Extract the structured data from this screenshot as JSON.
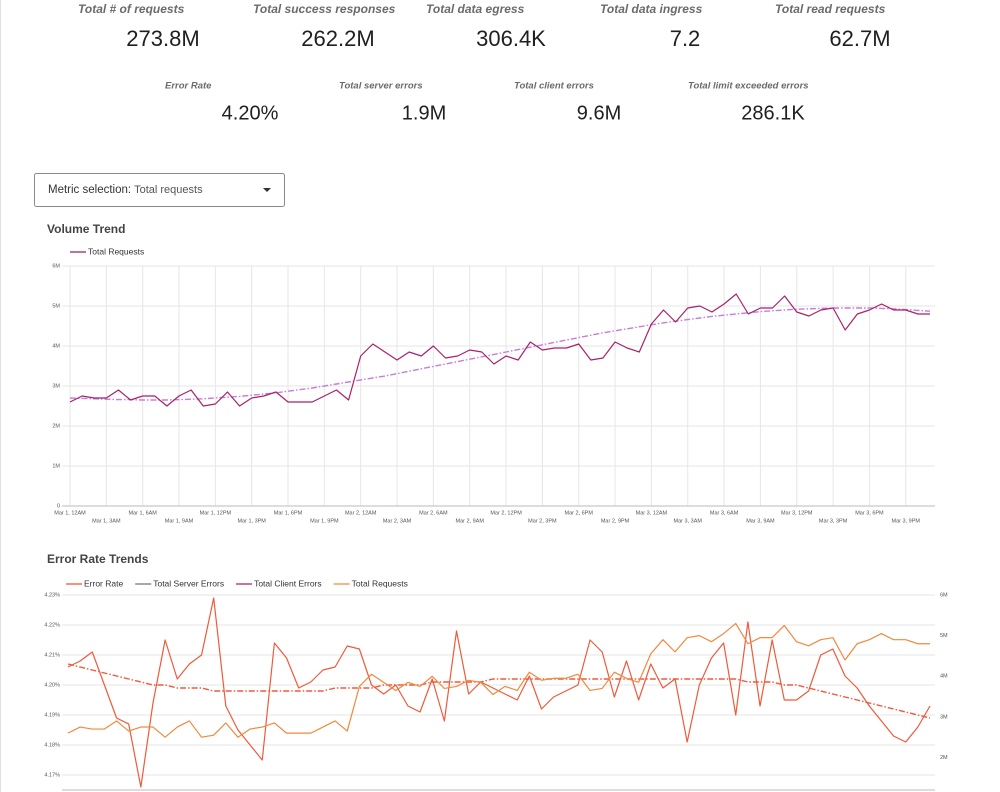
{
  "scorecards": [
    {
      "label": "Total # of requests",
      "value": "273.8M"
    },
    {
      "label": "Total success responses",
      "value": "262.2M"
    },
    {
      "label": "Total data egress",
      "value": "306.4K"
    },
    {
      "label": "Total data ingress",
      "value": "7.2"
    },
    {
      "label": "Total read requests",
      "value": "62.7M"
    },
    {
      "label": "Error Rate",
      "value": "4.20%"
    },
    {
      "label": "Total server errors",
      "value": "1.9M"
    },
    {
      "label": "Total client errors",
      "value": "9.6M"
    },
    {
      "label": "Total limit exceeded errors",
      "value": "286.1K"
    }
  ],
  "metric_selection": {
    "label": "Metric selection:",
    "value": "Total requests"
  },
  "chart_data": [
    {
      "type": "line",
      "title": "Volume Trend",
      "categories": [
        "Mar 1, 12AM",
        null,
        null,
        "Mar 1, 3AM",
        null,
        null,
        "Mar 1, 6AM",
        null,
        null,
        "Mar 1, 9AM",
        null,
        null,
        "Mar 1, 12PM",
        null,
        null,
        "Mar 1, 3PM",
        null,
        null,
        "Mar 1, 6PM",
        null,
        null,
        "Mar 1, 9PM",
        null,
        null,
        "Mar 2, 12AM",
        null,
        null,
        "Mar 2, 3AM",
        null,
        null,
        "Mar 2, 6AM",
        null,
        null,
        "Mar 2, 9AM",
        null,
        null,
        "Mar 2, 12PM",
        null,
        null,
        "Mar 2, 3PM",
        null,
        null,
        "Mar 2, 6PM",
        null,
        null,
        "Mar 2, 9PM",
        null,
        null,
        "Mar 3, 12AM",
        null,
        null,
        "Mar 3, 3AM",
        null,
        null,
        "Mar 3, 6AM",
        null,
        null,
        "Mar 3, 9AM",
        null,
        null,
        "Mar 3, 12PM",
        null,
        null,
        "Mar 3, 3PM",
        null,
        null,
        "Mar 3, 6PM",
        null,
        null,
        "Mar 3, 9PM",
        null,
        null
      ],
      "series": [
        {
          "name": "Total Requests",
          "color": "#a8226a",
          "values": [
            2600000,
            2750000,
            2700000,
            2700000,
            2900000,
            2650000,
            2750000,
            2750000,
            2500000,
            2750000,
            2900000,
            2500000,
            2550000,
            2850000,
            2500000,
            2700000,
            2750000,
            2850000,
            2600000,
            2600000,
            2600000,
            2750000,
            2900000,
            2650000,
            3750000,
            4050000,
            3850000,
            3650000,
            3850000,
            3750000,
            4000000,
            3700000,
            3750000,
            3900000,
            3850000,
            3550000,
            3750000,
            3650000,
            4100000,
            3900000,
            3950000,
            3950000,
            4050000,
            3650000,
            3700000,
            4100000,
            3950000,
            3850000,
            4550000,
            4900000,
            4600000,
            4950000,
            5000000,
            4850000,
            5050000,
            5300000,
            4800000,
            4950000,
            4950000,
            5250000,
            4850000,
            4750000,
            4900000,
            4950000,
            4400000,
            4800000,
            4900000,
            5050000,
            4900000,
            4900000,
            4800000,
            4800000
          ],
          "trend_color": "#c77ddb",
          "trend": [
            2700000,
            2690000,
            2680000,
            2670000,
            2660000,
            2660000,
            2650000,
            2650000,
            2650000,
            2660000,
            2670000,
            2680000,
            2700000,
            2720000,
            2740000,
            2770000,
            2800000,
            2830000,
            2870000,
            2910000,
            2950000,
            3000000,
            3050000,
            3100000,
            3150000,
            3200000,
            3250000,
            3310000,
            3370000,
            3430000,
            3490000,
            3550000,
            3610000,
            3670000,
            3730000,
            3790000,
            3850000,
            3910000,
            3970000,
            4030000,
            4090000,
            4150000,
            4210000,
            4270000,
            4330000,
            4380000,
            4430000,
            4480000,
            4530000,
            4580000,
            4620000,
            4660000,
            4700000,
            4740000,
            4770000,
            4800000,
            4830000,
            4860000,
            4880000,
            4900000,
            4920000,
            4930000,
            4940000,
            4950000,
            4950000,
            4950000,
            4950000,
            4940000,
            4930000,
            4910000,
            4890000,
            4870000
          ]
        }
      ],
      "ylim": [
        0,
        6000000
      ],
      "yticks": [
        0,
        {
          "value": 1000000,
          "label": "1M"
        },
        {
          "value": 2000000,
          "label": "2M"
        },
        {
          "value": 3000000,
          "label": "3M"
        },
        {
          "value": 4000000,
          "label": "4M"
        },
        {
          "value": 5000000,
          "label": "5M"
        },
        {
          "value": 6000000,
          "label": "6M"
        }
      ],
      "grid": true
    },
    {
      "type": "line",
      "title": "Error Rate Trends",
      "series": [
        {
          "name": "Error Rate",
          "color": "#ee5a3b",
          "values": [
            4.206,
            4.208,
            4.211,
            4.2,
            4.189,
            4.187,
            4.166,
            4.194,
            4.215,
            4.202,
            4.207,
            4.21,
            4.229,
            4.193,
            4.185,
            4.18,
            4.175,
            4.214,
            4.209,
            4.199,
            4.201,
            4.205,
            4.206,
            4.213,
            4.212,
            4.2,
            4.197,
            4.2,
            4.193,
            4.191,
            4.202,
            4.188,
            4.218,
            4.197,
            4.201,
            4.199,
            4.197,
            4.195,
            4.203,
            4.192,
            4.196,
            4.198,
            4.2,
            4.215,
            4.211,
            4.196,
            4.208,
            4.195,
            4.207,
            4.199,
            4.202,
            4.181,
            4.2,
            4.209,
            4.214,
            4.19,
            4.221,
            4.193,
            4.215,
            4.195,
            4.195,
            4.198,
            4.21,
            4.212,
            4.203,
            4.199,
            4.193,
            4.188,
            4.183,
            4.181,
            4.186,
            4.193
          ],
          "trend_color": "#ee5a3b",
          "trend": [
            4.207,
            4.206,
            4.205,
            4.204,
            4.203,
            4.202,
            4.201,
            4.2,
            4.2,
            4.199,
            4.199,
            4.199,
            4.198,
            4.198,
            4.198,
            4.198,
            4.198,
            4.198,
            4.198,
            4.198,
            4.198,
            4.198,
            4.199,
            4.199,
            4.199,
            4.199,
            4.2,
            4.2,
            4.2,
            4.2,
            4.201,
            4.201,
            4.201,
            4.201,
            4.201,
            4.202,
            4.202,
            4.202,
            4.202,
            4.202,
            4.202,
            4.202,
            4.202,
            4.202,
            4.202,
            4.202,
            4.202,
            4.202,
            4.202,
            4.202,
            4.202,
            4.202,
            4.202,
            4.202,
            4.202,
            4.202,
            4.201,
            4.201,
            4.201,
            4.2,
            4.2,
            4.199,
            4.198,
            4.197,
            4.196,
            4.195,
            4.194,
            4.193,
            4.192,
            4.191,
            4.19,
            4.189
          ]
        },
        {
          "name": "Total Server Errors",
          "color": "#757575"
        },
        {
          "name": "Total Client Errors",
          "color": "#a8226a"
        },
        {
          "name": "Total Requests",
          "color": "#f08a3e",
          "axis": "y2",
          "values": [
            2600000,
            2750000,
            2700000,
            2700000,
            2900000,
            2650000,
            2750000,
            2750000,
            2500000,
            2750000,
            2900000,
            2500000,
            2550000,
            2850000,
            2500000,
            2700000,
            2750000,
            2850000,
            2600000,
            2600000,
            2600000,
            2750000,
            2900000,
            2650000,
            3750000,
            4050000,
            3850000,
            3650000,
            3850000,
            3750000,
            4000000,
            3700000,
            3750000,
            3900000,
            3850000,
            3550000,
            3750000,
            3650000,
            4100000,
            3900000,
            3950000,
            3950000,
            4050000,
            3650000,
            3700000,
            4100000,
            3950000,
            3850000,
            4550000,
            4900000,
            4600000,
            4950000,
            5000000,
            4850000,
            5050000,
            5300000,
            4800000,
            4950000,
            4950000,
            5250000,
            4850000,
            4750000,
            4900000,
            4950000,
            4400000,
            4800000,
            4900000,
            5050000,
            4900000,
            4900000,
            4800000,
            4800000
          ]
        }
      ],
      "ylim": [
        4.165,
        4.23
      ],
      "yticks": [
        {
          "value": 4.17,
          "label": "4.17%"
        },
        {
          "value": 4.18,
          "label": "4.18%"
        },
        {
          "value": 4.19,
          "label": "4.19%"
        },
        {
          "value": 4.2,
          "label": "4.20%"
        },
        {
          "value": 4.21,
          "label": "4.21%"
        },
        {
          "value": 4.22,
          "label": "4.22%"
        },
        {
          "value": 4.23,
          "label": "4.23%"
        }
      ],
      "y2lim": [
        1200000,
        6000000
      ],
      "y2ticks": [
        {
          "value": 2000000,
          "label": "2M"
        },
        {
          "value": 3000000,
          "label": "3M"
        },
        {
          "value": 4000000,
          "label": "4M"
        },
        {
          "value": 5000000,
          "label": "5M"
        },
        {
          "value": 6000000,
          "label": "6M"
        }
      ],
      "grid": true
    }
  ]
}
